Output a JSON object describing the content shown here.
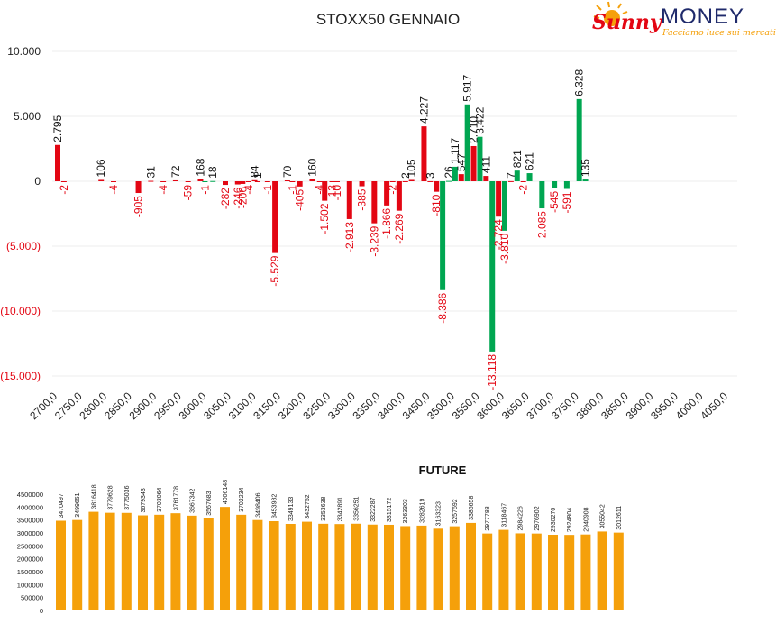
{
  "logo": {
    "sunny": "Sunny",
    "money": "MONEY",
    "tagline": "Facciamo luce sui mercati"
  },
  "chart_data": [
    {
      "type": "bar",
      "title": "STOXX50 GENNAIO",
      "xlabel": "",
      "ylabel": "",
      "ylim": [
        -15000,
        10000
      ],
      "y_ticks": [
        "10.000",
        "5.000",
        "0",
        "(5.000)",
        "(10.000)",
        "(15.000)"
      ],
      "categories": [
        "2700,0",
        "2750,0",
        "2800,0",
        "2850,0",
        "2900,0",
        "2950,0",
        "3000,0",
        "3050,0",
        "3100,0",
        "3150,0",
        "3200,0",
        "3250,0",
        "3300,0",
        "3350,0",
        "3400,0",
        "3450,0",
        "3500,0",
        "3550,0",
        "3600,0",
        "3650,0",
        "3700,0",
        "3750,0",
        "3800,0",
        "3850,0",
        "3900,0",
        "3950,0",
        "4000,0",
        "4050,0"
      ],
      "colors": {
        "negative": "#e30613",
        "positive": "#00a651"
      },
      "bars": [
        {
          "x": 2700,
          "value": 2795,
          "label": "2.795",
          "color": "red"
        },
        {
          "x": 2712.5,
          "value": -2,
          "label": "-2",
          "color": "red"
        },
        {
          "x": 2787.5,
          "value": 106,
          "label": "106",
          "color": "red"
        },
        {
          "x": 2812.5,
          "value": -4,
          "label": "-4",
          "color": "red"
        },
        {
          "x": 2862.5,
          "value": -905,
          "label": "-905",
          "color": "red"
        },
        {
          "x": 2887.5,
          "value": 31,
          "label": "31",
          "color": "red"
        },
        {
          "x": 2912.5,
          "value": -4,
          "label": "-4",
          "color": "red"
        },
        {
          "x": 2937.5,
          "value": 72,
          "label": "72",
          "color": "red"
        },
        {
          "x": 2962.5,
          "value": -59,
          "label": "-59",
          "color": "red"
        },
        {
          "x": 2987.5,
          "value": 168,
          "label": "168",
          "color": "red"
        },
        {
          "x": 2996.5,
          "value": -1,
          "label": "-1",
          "color": "green"
        },
        {
          "x": 3012.5,
          "value": 18,
          "label": "18",
          "color": "green"
        },
        {
          "x": 3037.5,
          "value": -282,
          "label": "-282",
          "color": "red"
        },
        {
          "x": 3062.5,
          "value": -246,
          "label": "-246",
          "color": "red"
        },
        {
          "x": 3072.5,
          "value": -206,
          "label": "-206",
          "color": "red"
        },
        {
          "x": 3084.5,
          "value": -4,
          "label": "-4",
          "color": "red"
        },
        {
          "x": 3096.5,
          "value": 84,
          "label": "84",
          "color": "red"
        },
        {
          "x": 3102.5,
          "value": 1,
          "label": "1",
          "color": "red"
        },
        {
          "x": 3122.5,
          "value": -1,
          "label": "-1",
          "color": "red"
        },
        {
          "x": 3137.5,
          "value": -5529,
          "label": "-5.529",
          "color": "red"
        },
        {
          "x": 3162.5,
          "value": 70,
          "label": "70",
          "color": "red"
        },
        {
          "x": 3172.5,
          "value": -1,
          "label": "-1",
          "color": "red"
        },
        {
          "x": 3187.5,
          "value": -405,
          "label": "-405",
          "color": "red"
        },
        {
          "x": 3212.5,
          "value": 160,
          "label": "160",
          "color": "red"
        },
        {
          "x": 3227.5,
          "value": -4,
          "label": "-4",
          "color": "red"
        },
        {
          "x": 3237.5,
          "value": -1502,
          "label": "-1.502",
          "color": "red"
        },
        {
          "x": 3252.5,
          "value": -13,
          "label": "-13",
          "color": "red"
        },
        {
          "x": 3262.5,
          "value": -10,
          "label": "-10",
          "color": "red"
        },
        {
          "x": 3287.5,
          "value": -2913,
          "label": "-2.913",
          "color": "red"
        },
        {
          "x": 3312.5,
          "value": -385,
          "label": "-385",
          "color": "red"
        },
        {
          "x": 3337.5,
          "value": -3239,
          "label": "-3.239",
          "color": "red"
        },
        {
          "x": 3362.5,
          "value": -1866,
          "label": "-1.866",
          "color": "red"
        },
        {
          "x": 3374.5,
          "value": -2,
          "label": "-2",
          "color": "red"
        },
        {
          "x": 3387.5,
          "value": -2269,
          "label": "-2.269",
          "color": "red"
        },
        {
          "x": 3400,
          "value": 2,
          "label": "2",
          "color": "red"
        },
        {
          "x": 3412.5,
          "value": 105,
          "label": "105",
          "color": "red"
        },
        {
          "x": 3437.5,
          "value": 4227,
          "label": "4.227",
          "color": "red"
        },
        {
          "x": 3450,
          "value": 3,
          "label": "3",
          "color": "red"
        },
        {
          "x": 3462.5,
          "value": -810,
          "label": "-810",
          "color": "red"
        },
        {
          "x": 3475,
          "value": -8386,
          "label": "-8.386",
          "color": "green"
        },
        {
          "x": 3487.5,
          "value": 26,
          "label": "26",
          "color": "green"
        },
        {
          "x": 3500,
          "value": 1117,
          "label": "1.117",
          "color": "green"
        },
        {
          "x": 3512.5,
          "value": 547,
          "label": "547",
          "color": "red"
        },
        {
          "x": 3525,
          "value": 5917,
          "label": "5.917",
          "color": "green"
        },
        {
          "x": 3537.5,
          "value": 2710,
          "label": "2.710",
          "color": "red"
        },
        {
          "x": 3550,
          "value": 3422,
          "label": "3.422",
          "color": "green"
        },
        {
          "x": 3562.5,
          "value": 411,
          "label": "411",
          "color": "red"
        },
        {
          "x": 3575,
          "value": -13118,
          "label": "-13.118",
          "color": "green"
        },
        {
          "x": 3587.5,
          "value": -2724,
          "label": "-2.724",
          "color": "red"
        },
        {
          "x": 3600,
          "value": -3810,
          "label": "-3.810",
          "color": "green"
        },
        {
          "x": 3612.5,
          "value": 7,
          "label": "7",
          "color": "red"
        },
        {
          "x": 3625,
          "value": 821,
          "label": "821",
          "color": "green"
        },
        {
          "x": 3637.5,
          "value": -2,
          "label": "-2",
          "color": "red"
        },
        {
          "x": 3650,
          "value": 621,
          "label": "621",
          "color": "green"
        },
        {
          "x": 3675,
          "value": -2085,
          "label": "-2.085",
          "color": "green"
        },
        {
          "x": 3700,
          "value": -545,
          "label": "-545",
          "color": "green"
        },
        {
          "x": 3725,
          "value": -591,
          "label": "-591",
          "color": "green"
        },
        {
          "x": 3750,
          "value": 6328,
          "label": "6.328",
          "color": "green"
        },
        {
          "x": 3762.5,
          "value": 135,
          "label": "135",
          "color": "green"
        }
      ]
    },
    {
      "type": "bar",
      "title": "FUTURE",
      "xlabel": "",
      "ylabel": "",
      "ylim": [
        0,
        4500000
      ],
      "y_ticks": [
        "4500000",
        "4000000",
        "3500000",
        "3000000",
        "2500000",
        "2000000",
        "1500000",
        "1000000",
        "500000",
        "0"
      ],
      "color": "#f5a00a",
      "values": [
        3470497,
        3499651,
        3816418,
        3779628,
        3775036,
        3679343,
        3703064,
        3761778,
        3667342,
        3567683,
        4006148,
        3702234,
        3498406,
        3453982,
        3349133,
        3432752,
        3353638,
        3342891,
        3356251,
        3322287,
        3315172,
        3263303,
        3282619,
        3163323,
        3257692,
        3386658,
        2977788,
        3118467,
        2984226,
        2976902,
        2930270,
        2924804,
        2940908,
        3055042,
        3012611
      ]
    }
  ]
}
